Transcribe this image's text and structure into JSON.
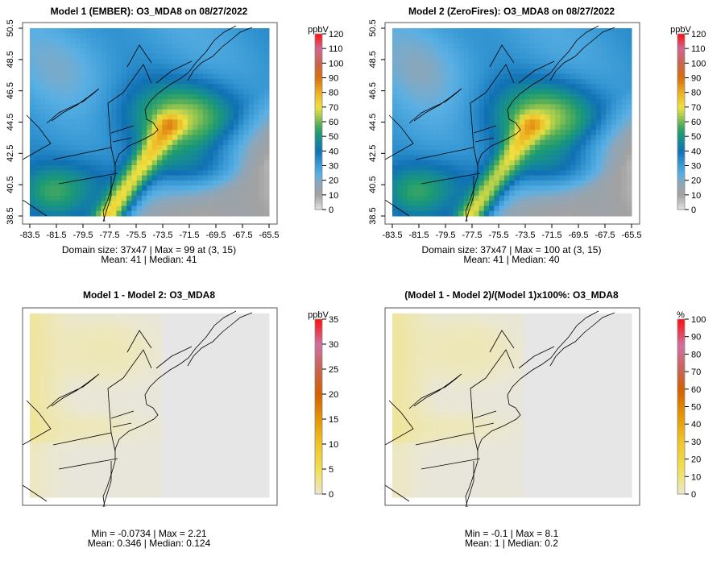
{
  "chart_data": [
    {
      "type": "heatmap",
      "title": "Model 1 (EMBER): O3_MDA8 on 08/27/2022",
      "x_ticks": [
        "-83.5",
        "-81.5",
        "-79.5",
        "-77.5",
        "-75.5",
        "-73.5",
        "-71.5",
        "-69.5",
        "-67.5",
        "-65.5"
      ],
      "y_ticks": [
        "38.5",
        "40.5",
        "42.5",
        "44.5",
        "46.5",
        "48.5",
        "50.5"
      ],
      "xlim": [
        -83.5,
        -65.5
      ],
      "ylim": [
        38.5,
        50.5
      ],
      "colorbar": {
        "unit": "ppbV",
        "ticks": [
          "0",
          "10",
          "20",
          "30",
          "40",
          "50",
          "60",
          "70",
          "80",
          "90",
          "100",
          "110",
          "120"
        ],
        "range": [
          0,
          120
        ]
      },
      "stats": [
        "Domain size: 37x47 | Max = 99 at (3, 15)",
        "Mean: 41 |  Median: 41"
      ],
      "field": "model1",
      "max": 99,
      "mean": 41,
      "median": 41
    },
    {
      "type": "heatmap",
      "title": "Model 2 (ZeroFires): O3_MDA8 on 08/27/2022",
      "x_ticks": [
        "-83.5",
        "-81.5",
        "-79.5",
        "-77.5",
        "-75.5",
        "-73.5",
        "-71.5",
        "-69.5",
        "-67.5",
        "-65.5"
      ],
      "y_ticks": [
        "38.5",
        "40.5",
        "42.5",
        "44.5",
        "46.5",
        "48.5",
        "50.5"
      ],
      "xlim": [
        -83.5,
        -65.5
      ],
      "ylim": [
        38.5,
        50.5
      ],
      "colorbar": {
        "unit": "ppbV",
        "ticks": [
          "0",
          "10",
          "20",
          "30",
          "40",
          "50",
          "60",
          "70",
          "80",
          "90",
          "100",
          "110",
          "120"
        ],
        "range": [
          0,
          120
        ]
      },
      "stats": [
        "Domain size: 37x47 | Max = 100 at (3, 15)",
        "Mean: 41 |  Median: 40"
      ],
      "field": "model2",
      "max": 100,
      "mean": 41,
      "median": 40
    },
    {
      "type": "heatmap",
      "title": "Model 1 - Model 2: O3_MDA8",
      "colorbar": {
        "unit": "ppbV",
        "ticks": [
          "0",
          "5",
          "10",
          "15",
          "20",
          "25",
          "30",
          "35"
        ],
        "range": [
          0,
          35
        ]
      },
      "stats": [
        "Min = -0.0734 | Max = 2.21",
        "Mean: 0.346 |  Median: 0.124"
      ],
      "field": "diff",
      "min": -0.0734,
      "max": 2.21,
      "mean": 0.346,
      "median": 0.124
    },
    {
      "type": "heatmap",
      "title": "(Model 1 - Model 2)/(Model 1)x100%: O3_MDA8",
      "colorbar": {
        "unit": "%",
        "ticks": [
          "0",
          "10",
          "20",
          "30",
          "40",
          "50",
          "60",
          "70",
          "80",
          "90",
          "100"
        ],
        "range": [
          0,
          100
        ]
      },
      "stats": [
        "Min = -0.1 | Max = 8.1",
        "Mean: 1 |  Median: 0.2"
      ],
      "field": "pct",
      "min": -0.1,
      "max": 8.1,
      "mean": 1,
      "median": 0.2
    }
  ]
}
